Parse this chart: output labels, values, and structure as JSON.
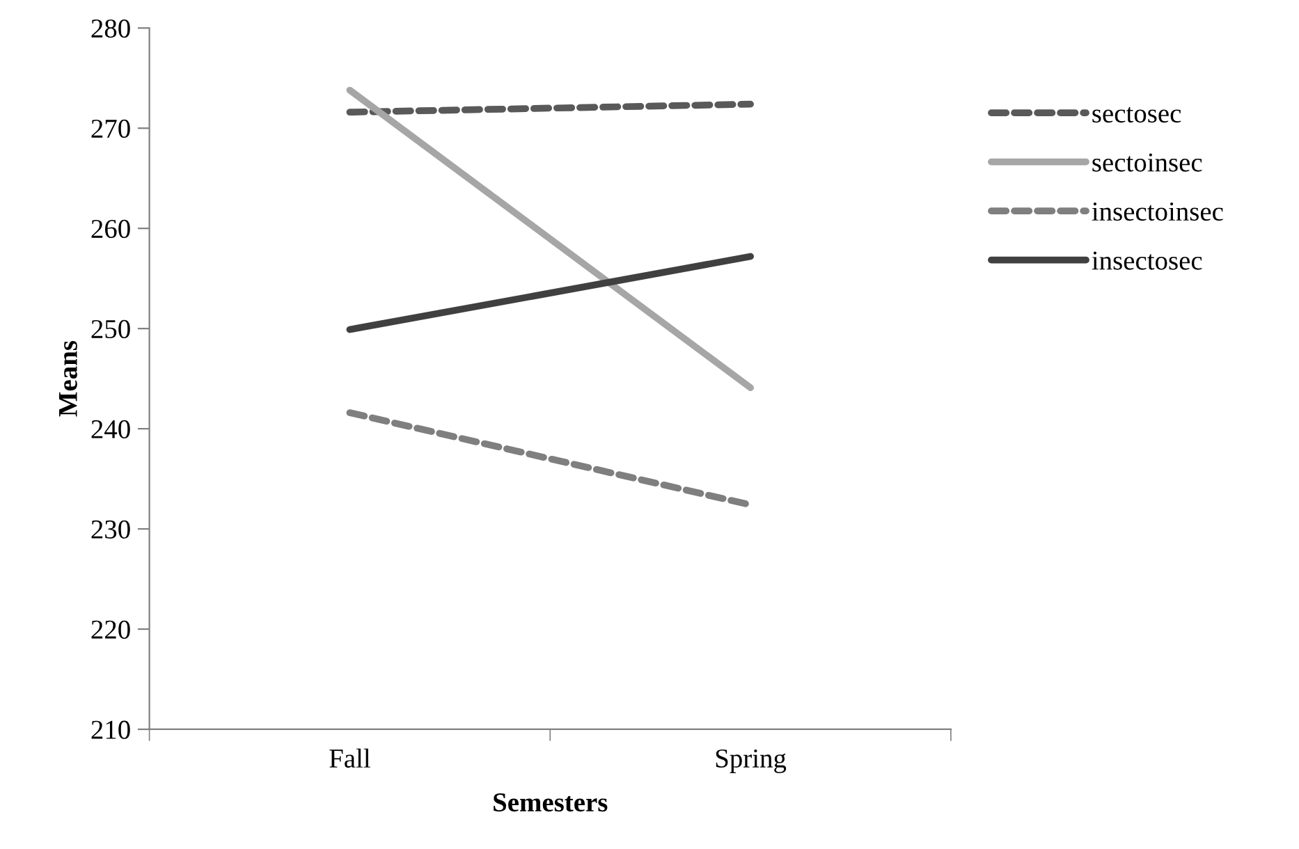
{
  "chart_data": {
    "type": "line",
    "xlabel": "Semesters",
    "ylabel": "Means",
    "categories": [
      "Fall",
      "Spring"
    ],
    "series": [
      {
        "name": "sectosec",
        "color": "#595959",
        "values": [
          271.6,
          272.4
        ],
        "line_style": "dashed"
      },
      {
        "name": "sectoinsec",
        "color": "#a6a6a6",
        "values": [
          273.8,
          244.1
        ],
        "line_style": "solid"
      },
      {
        "name": "insectoinsec",
        "color": "#7f7f7f",
        "values": [
          241.6,
          232.4
        ],
        "line_style": "dashed"
      },
      {
        "name": "insectosec",
        "color": "#404040",
        "values": [
          249.9,
          257.2
        ],
        "line_style": "solid"
      }
    ],
    "ylim": [
      210,
      280
    ],
    "yticks": [
      210,
      220,
      230,
      240,
      250,
      260,
      270,
      280
    ],
    "grid": false,
    "legend": "right",
    "marker": "none"
  }
}
